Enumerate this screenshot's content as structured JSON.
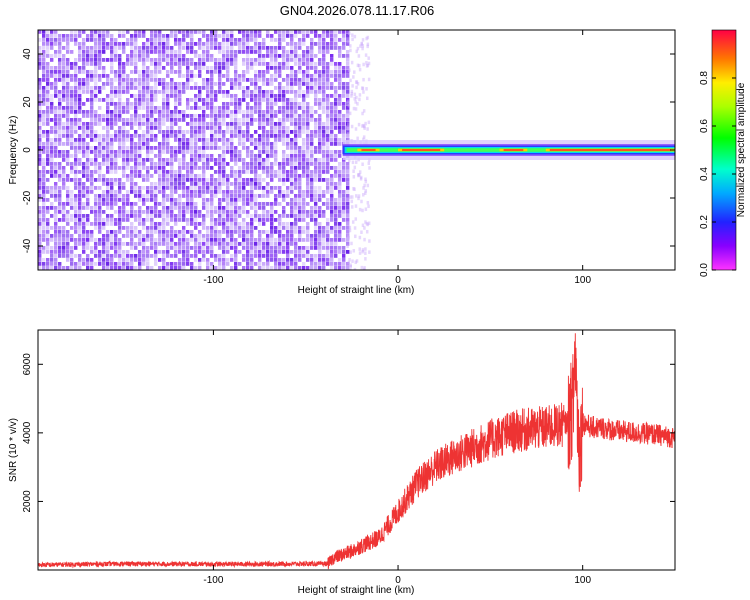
{
  "title": "GN04.2026.078.11.17.R06",
  "colors": {
    "snr_line": "#ee3333",
    "background_noise": "#7a2cf0",
    "axis": "#000000"
  },
  "chart_data": [
    {
      "type": "heatmap",
      "xlabel": "Height of straight line (km)",
      "ylabel": "Frequency (Hz)",
      "xlim": [
        -195,
        150
      ],
      "ylim": [
        -50,
        50
      ],
      "xticks": [
        -100,
        0,
        100
      ],
      "yticks": [
        -40,
        -20,
        0,
        20,
        40
      ],
      "colorbar": {
        "label": "Normalized spectral amplitude",
        "range": [
          0.0,
          1.0
        ],
        "ticks": [
          "0.0",
          "0.2",
          "0.4",
          "0.6",
          "0.8"
        ],
        "tick_values": [
          0.0,
          0.2,
          0.4,
          0.6,
          0.8
        ],
        "colormap": "rainbow (magenta-blue-cyan-green-yellow-red)"
      },
      "features": {
        "noise_region_x": [
          -195,
          -28
        ],
        "carrier_frequency_hz": 0,
        "carrier_start_x": -30
      }
    },
    {
      "type": "line",
      "xlabel": "Height of straight line (km)",
      "ylabel": "SNR (10 * v/v)",
      "xlim": [
        -195,
        150
      ],
      "ylim": [
        0,
        7000
      ],
      "xticks": [
        -100,
        0,
        100
      ],
      "yticks": [
        2000,
        4000,
        6000
      ],
      "series": [
        {
          "x": [
            -195,
            -150,
            -100,
            -50,
            -38,
            -35,
            -30,
            -25,
            -20,
            -10,
            0,
            10,
            20,
            30,
            40,
            50,
            60,
            70,
            80,
            85,
            90,
            93,
            95,
            96,
            97,
            98,
            100,
            105,
            110,
            120,
            130,
            140,
            150
          ],
          "y": [
            150,
            180,
            170,
            180,
            180,
            350,
            450,
            550,
            700,
            950,
            1700,
            2500,
            3000,
            3300,
            3550,
            3800,
            4000,
            4100,
            4150,
            4200,
            4250,
            4400,
            5000,
            6500,
            4800,
            3500,
            4300,
            4150,
            4150,
            4050,
            4000,
            3950,
            3850
          ]
        }
      ]
    }
  ]
}
